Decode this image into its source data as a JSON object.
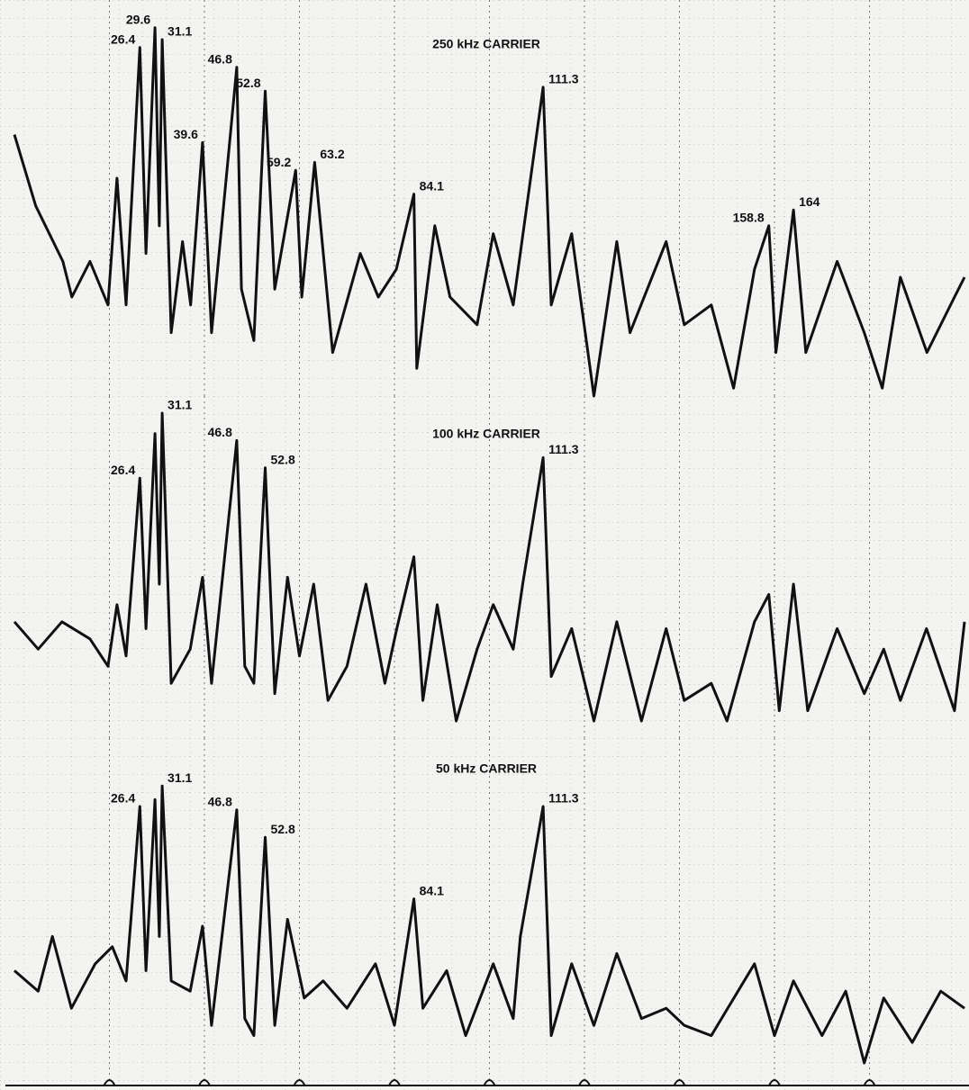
{
  "chart_data": [
    {
      "type": "line",
      "title": "250 kHz CARRIER",
      "xlim": [
        0,
        200
      ],
      "xticks": [
        20,
        40,
        60,
        80,
        100,
        120,
        140,
        160,
        180
      ],
      "ylim": [
        0,
        100
      ],
      "x": [
        0,
        4.5,
        10.2,
        12.1,
        15.9,
        19.7,
        21.6,
        23.5,
        26.4,
        27.7,
        29.6,
        30.5,
        31.1,
        33,
        35.4,
        37.1,
        39.6,
        41.5,
        46.8,
        47.8,
        50.4,
        52.8,
        54.8,
        59.2,
        60.5,
        63.2,
        67,
        72.8,
        76.6,
        80.4,
        84.1,
        84.7,
        88.5,
        91.7,
        97.4,
        100.8,
        105,
        111.3,
        113,
        117.3,
        122,
        126.8,
        129.6,
        137.2,
        141,
        146.7,
        151.4,
        155.8,
        158.8,
        160.3,
        164,
        166.6,
        173.2,
        178.9,
        182.7,
        186.5,
        192.1,
        197.9,
        200
      ],
      "values": [
        66,
        48,
        34,
        25,
        34,
        23,
        55,
        23,
        88,
        36,
        93,
        43,
        90,
        16,
        39,
        23,
        64,
        16,
        83,
        27,
        14,
        77,
        27,
        57,
        25,
        59,
        11,
        36,
        25,
        32,
        51,
        7,
        43,
        25,
        18,
        41,
        23,
        78,
        23,
        41,
        0,
        39,
        16,
        39,
        18,
        23,
        2,
        32,
        43,
        11,
        47,
        11,
        34,
        16,
        2,
        30,
        11,
        25,
        30
      ],
      "peaks": [
        26.4,
        29.6,
        31.1,
        39.6,
        46.8,
        52.8,
        59.2,
        63.2,
        84.1,
        111.3,
        158.8,
        164
      ]
    },
    {
      "type": "line",
      "title": "100 kHz CARRIER",
      "xlim": [
        0,
        200
      ],
      "xticks": [
        20,
        40,
        60,
        80,
        100,
        120,
        140,
        160,
        180
      ],
      "ylim": [
        0,
        100
      ],
      "x": [
        0,
        5,
        10,
        15.9,
        19.7,
        21.6,
        23.5,
        26.4,
        27.7,
        29.6,
        30.5,
        31.1,
        33,
        37,
        39.6,
        41.5,
        46.8,
        48.5,
        50.4,
        52.8,
        54.8,
        57.5,
        60,
        63,
        66,
        70,
        74,
        78,
        80.5,
        84.1,
        86,
        89,
        93,
        97.4,
        100.8,
        105,
        107,
        111.3,
        113,
        117.3,
        122,
        126.8,
        132,
        137.2,
        141,
        146.7,
        150,
        155.8,
        158.8,
        161,
        164,
        167,
        173.2,
        178.9,
        183,
        186.5,
        192,
        197.9,
        200
      ],
      "values": [
        34,
        26,
        34,
        29,
        21,
        39,
        24,
        76,
        32,
        89,
        45,
        95,
        16,
        26,
        47,
        16,
        87,
        21,
        16,
        79,
        13,
        47,
        24,
        45,
        11,
        21,
        45,
        16,
        32,
        53,
        11,
        39,
        5,
        26,
        39,
        26,
        45,
        82,
        18,
        32,
        5,
        34,
        5,
        32,
        11,
        16,
        5,
        34,
        42,
        8,
        45,
        8,
        32,
        13,
        26,
        11,
        32,
        8,
        34
      ],
      "peaks": [
        26.4,
        31.1,
        46.8,
        52.8,
        111.3
      ]
    },
    {
      "type": "line",
      "title": "50 kHz CARRIER",
      "xlim": [
        0,
        200
      ],
      "xticks": [
        20,
        40,
        60,
        80,
        100,
        120,
        140,
        160,
        180
      ],
      "ylim": [
        0,
        100
      ],
      "x": [
        0,
        5,
        8,
        12,
        17,
        20.6,
        23.5,
        26.4,
        27.7,
        29.6,
        30.5,
        31.1,
        33,
        37,
        39.6,
        41.5,
        46.8,
        48.5,
        50.4,
        52.8,
        54.8,
        57.5,
        61,
        65,
        70,
        76,
        80,
        84.1,
        86,
        91,
        95,
        100.8,
        105,
        106.5,
        111.3,
        113,
        117.3,
        122,
        126.8,
        132,
        137.2,
        141,
        146.7,
        155.8,
        160,
        164,
        170,
        175,
        178.9,
        183,
        189,
        195,
        200
      ],
      "values": [
        32,
        26,
        42,
        21,
        34,
        39,
        29,
        80,
        32,
        82,
        42,
        86,
        29,
        26,
        45,
        16,
        79,
        18,
        13,
        71,
        16,
        47,
        24,
        29,
        21,
        34,
        16,
        53,
        21,
        32,
        13,
        34,
        18,
        42,
        80,
        13,
        34,
        16,
        37,
        18,
        21,
        16,
        13,
        34,
        13,
        29,
        13,
        26,
        5,
        24,
        11,
        26,
        21
      ],
      "peaks": [
        26.4,
        31.1,
        46.8,
        52.8,
        84.1,
        111.3
      ]
    }
  ]
}
